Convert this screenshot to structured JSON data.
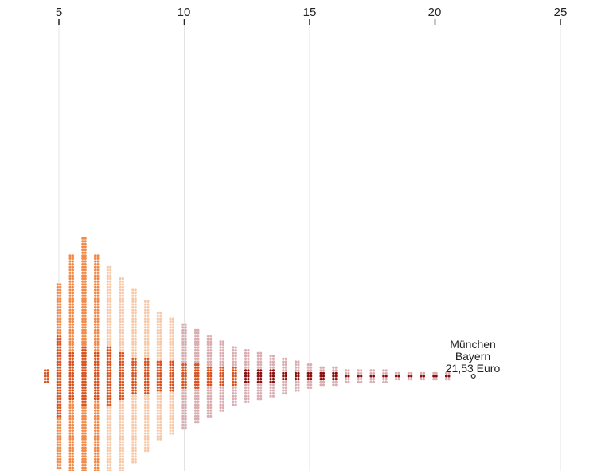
{
  "chart_data": {
    "type": "scatter",
    "subtype": "beeswarm",
    "title": "",
    "xlabel": "",
    "ylabel": "",
    "xlim": [
      5,
      25
    ],
    "x_ticks": [
      "5",
      "10",
      "15",
      "20",
      "25"
    ],
    "grid": true,
    "colors": {
      "light_orange": "#f7c9a9",
      "orange": "#f28b4a",
      "dark_orange": "#d9531e",
      "dark_red": "#8b0d0d",
      "mauve": "#d9adb1",
      "outline": "#333333"
    },
    "columns_note_only_for_rendering": null,
    "columns": [
      [
        4.5,
        2,
        2,
        "light_orange"
      ],
      [
        5.0,
        32,
        14,
        "orange"
      ],
      [
        5.5,
        42,
        8,
        "orange"
      ],
      [
        6.0,
        48,
        10,
        "orange"
      ],
      [
        6.5,
        42,
        8,
        "orange"
      ],
      [
        7.0,
        38,
        10,
        "light_orange"
      ],
      [
        7.5,
        34,
        8,
        "light_orange"
      ],
      [
        8.0,
        30,
        6,
        "light_orange"
      ],
      [
        8.5,
        26,
        6,
        "light_orange"
      ],
      [
        9.0,
        22,
        5,
        "light_orange"
      ],
      [
        9.5,
        20,
        5,
        "light_orange"
      ],
      [
        10.0,
        18,
        4,
        "mauve"
      ],
      [
        10.5,
        16,
        4,
        "mauve"
      ],
      [
        11.0,
        14,
        3,
        "mauve"
      ],
      [
        11.5,
        12,
        3,
        "mauve"
      ],
      [
        12.0,
        10,
        3,
        "mauve"
      ],
      [
        12.5,
        9,
        2,
        "mauve"
      ],
      [
        13.0,
        8,
        2,
        "mauve"
      ],
      [
        13.5,
        7,
        2,
        "mauve"
      ],
      [
        14.0,
        6,
        1,
        "mauve"
      ],
      [
        14.5,
        5,
        1,
        "mauve"
      ],
      [
        15.0,
        4,
        1,
        "mauve"
      ],
      [
        15.5,
        3,
        1,
        "mauve"
      ],
      [
        16.0,
        3,
        1,
        "mauve"
      ],
      [
        16.5,
        2,
        0,
        "mauve"
      ],
      [
        17.0,
        2,
        0,
        "mauve"
      ],
      [
        17.5,
        2,
        0,
        "mauve"
      ],
      [
        18.0,
        2,
        0,
        "mauve"
      ],
      [
        18.5,
        1,
        0,
        "mauve"
      ],
      [
        19.0,
        1,
        0,
        "mauve"
      ],
      [
        19.5,
        1,
        0,
        "mauve"
      ],
      [
        20.0,
        1,
        0,
        "mauve"
      ],
      [
        20.5,
        1,
        0,
        "mauve"
      ]
    ],
    "highlight": {
      "x": 21.53,
      "label_lines": [
        "München",
        "Bayern",
        "21,53 Euro"
      ]
    }
  }
}
